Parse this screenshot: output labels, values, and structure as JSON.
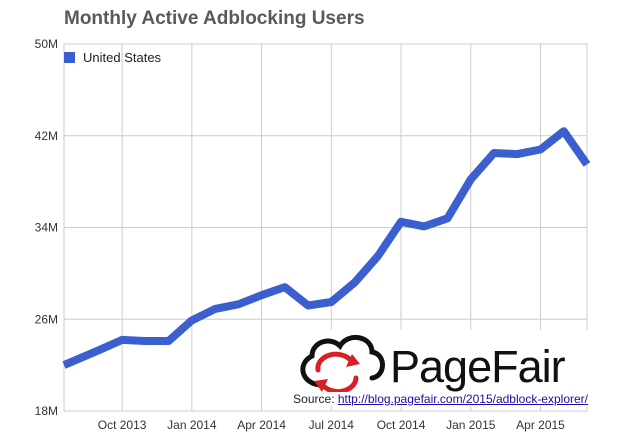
{
  "chart_data": {
    "type": "line",
    "title": "Monthly Active Adblocking Users",
    "xlabel": "",
    "ylabel": "",
    "ylim": [
      18,
      50
    ],
    "y_ticks": [
      "18M",
      "26M",
      "34M",
      "42M",
      "50M"
    ],
    "y_tick_values": [
      18,
      26,
      34,
      42,
      50
    ],
    "x_tick_labels": [
      "Oct 2013",
      "Jan 2014",
      "Apr 2014",
      "Jul 2014",
      "Oct 2014",
      "Jan 2015",
      "Apr 2015"
    ],
    "x_tick_index": [
      2,
      5,
      8,
      11,
      14,
      17,
      20
    ],
    "grid": true,
    "legend_position": "top-left",
    "series": [
      {
        "name": "United States",
        "color": "#3b5fcf",
        "x": [
          "Aug 2013",
          "Sep 2013",
          "Oct 2013",
          "Nov 2013",
          "Dec 2013",
          "Jan 2014",
          "Feb 2014",
          "Mar 2014",
          "Apr 2014",
          "May 2014",
          "Jun 2014",
          "Jul 2014",
          "Aug 2014",
          "Sep 2014",
          "Oct 2014",
          "Nov 2014",
          "Dec 2014",
          "Jan 2015",
          "Feb 2015",
          "Mar 2015",
          "Apr 2015",
          "May 2015",
          "Jun 2015"
        ],
        "values": [
          22.0,
          23.3,
          24.2,
          24.1,
          24.1,
          25.9,
          26.9,
          27.3,
          28.1,
          28.8,
          27.2,
          27.5,
          29.2,
          31.5,
          34.5,
          34.1,
          34.8,
          38.2,
          40.5,
          40.4,
          40.8,
          42.4,
          39.5
        ]
      }
    ]
  },
  "watermark": {
    "brand": "PageFair",
    "source_label": "Source:",
    "source_url": "http://blog.pagefair.com/2015/adblock-explorer/",
    "logo_icon": "cloud-refresh-icon"
  }
}
